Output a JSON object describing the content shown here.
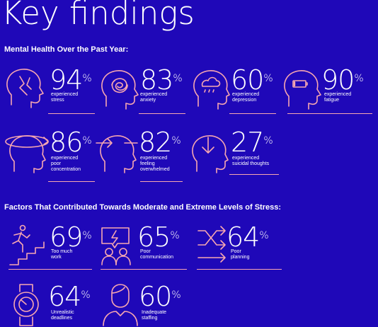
{
  "title": "Key findings",
  "section1": {
    "heading": "Mental Health Over the Past Year:",
    "items": [
      {
        "value": "94",
        "unit": "%",
        "label": "experienced\nstress",
        "icon": "stress-head-icon"
      },
      {
        "value": "83",
        "unit": "%",
        "label": "experienced\nanxiety",
        "icon": "anxiety-head-icon"
      },
      {
        "value": "60",
        "unit": "%",
        "label": "experienced\ndepression",
        "icon": "depression-head-icon"
      },
      {
        "value": "90",
        "unit": "%",
        "label": "experienced\nfatigue",
        "icon": "fatigue-head-icon"
      },
      {
        "value": "86",
        "unit": "%",
        "label": "experienced\npoor\nconcentration",
        "icon": "concentration-head-icon"
      },
      {
        "value": "82",
        "unit": "%",
        "label": "experienced\nfeeling\noverwhelmed",
        "icon": "overwhelmed-head-icon"
      },
      {
        "value": "27",
        "unit": "%",
        "label": "experienced\nsuicidal thoughts",
        "icon": "suicidal-thoughts-head-icon"
      }
    ]
  },
  "section2": {
    "heading": "Factors That Contributed Towards Moderate and Extreme Levels of Stress:",
    "items": [
      {
        "value": "69",
        "unit": "%",
        "label": "Too much\nwork",
        "icon": "stairs-runner-icon"
      },
      {
        "value": "65",
        "unit": "%",
        "label": "Poor\ncommunication",
        "icon": "communication-icon"
      },
      {
        "value": "64",
        "unit": "%",
        "label": "Poor\nplanning",
        "icon": "crossed-arrows-icon"
      },
      {
        "value": "64",
        "unit": "%",
        "label": "Unrealistic\ndeadlines",
        "icon": "watch-icon"
      },
      {
        "value": "60",
        "unit": "%",
        "label": "Inadequate\nstaffing",
        "icon": "person-icon"
      }
    ]
  }
}
